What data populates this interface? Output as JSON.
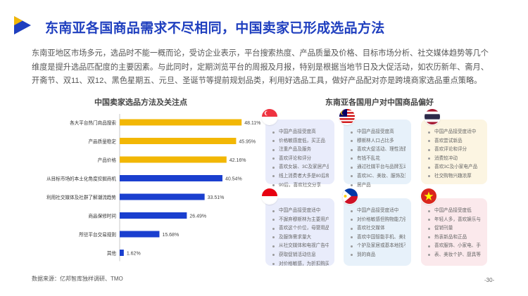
{
  "header": {
    "title": "东南亚各国商品需求不尽相同，中国卖家已形成选品方法"
  },
  "intro": {
    "text": "东南亚地区市场多元，选品时不能一概而论，受访企业表示，平台搜索热度、产品质量及价格、目标市场分析、社交媒体趋势等几个维度是提升选品匹配度的主要因素。与此同时，定期浏览平台的周报及月报，特别是根据当地节日及大促活动，如农历新年、斋月、开斋节、双11、双12、黑色星期五、元旦、圣诞节等提前规划品类，利用好选品工具，做好产品配对亦是跨境商家选品重点策略。"
  },
  "left_section": {
    "title": "中国卖家选品方法及关注点"
  },
  "right_section": {
    "title": "东南亚各国用户对中国商品偏好"
  },
  "colors": {
    "accent": "#1f3fbf",
    "gold": "#f2b705",
    "blue": "#1a3fcf"
  },
  "chart_data": {
    "type": "bar",
    "orientation": "horizontal",
    "categories": [
      "各大平台热门商品搜索",
      "产品质量稳定",
      "产品价格",
      "从目标市场的本土化角度挖掘商机",
      "利用社交媒体及社群了解潮流趋势",
      "商品保修时间",
      "所驻平台交易规则",
      "其他"
    ],
    "values": [
      48.11,
      45.95,
      42.16,
      40.54,
      33.51,
      26.49,
      15.68,
      1.62
    ],
    "value_labels": [
      "48.11%",
      "45.95%",
      "42.16%",
      "40.54%",
      "33.51%",
      "26.49%",
      "15.68%",
      "1.62%"
    ],
    "bar_colors": [
      "#f2b705",
      "#f2b705",
      "#f2b705",
      "#1a3fcf",
      "#1a3fcf",
      "#1a3fcf",
      "#1a3fcf",
      "#1a3fcf"
    ],
    "xlim": [
      0,
      50
    ],
    "grid": false
  },
  "countries": [
    {
      "flag": "singapore",
      "bg": "#e9ecfb",
      "items": [
        "中国产品接受度高",
        "价格敏感度低，买正品",
        "注重产品及服务",
        "喜欢评论和评分",
        "喜欢女装、3C及家居产品",
        "线上消费者大多是80后和",
        "90后，喜欢社交分享"
      ]
    },
    {
      "flag": "malaysia",
      "bg": "#e7f1fa",
      "items": [
        "中国产品接受度高",
        "穆斯林人口占比多",
        "喜欢大促活动、理性消费、",
        "有钱不乱花",
        "通过社媒平台与品牌互动",
        "喜欢3C、美妆、服饰及家",
        "居产品"
      ]
    },
    {
      "flag": "thailand",
      "bg": "#fcf5e2",
      "items": [
        "中国产品接受度适中",
        "喜欢尝试新品",
        "喜欢评论和评分",
        "消费较冲动",
        "喜欢3C及小家电产品",
        "社交购物兴趣浓厚"
      ]
    },
    {
      "flag": "indonesia",
      "bg": "#e9ecfb",
      "items": [
        "中国产品接受度适中",
        "不摒弃穆斯林为主要用户",
        "喜欢这个价位，母婴用品",
        "及服饰需求量大",
        "从社交媒体和电视广告中",
        "获取促销活动信息",
        "对价格敏感，为折扣购买"
      ]
    },
    {
      "flag": "philippines",
      "bg": "#e7f1fa",
      "items": [
        "中国产品接受度适中",
        "对价格敏感但购物能力强",
        "喜欢社交媒体",
        "喜欢中国智能手机、美妆",
        "个护及家居或基本地找不",
        "到的商品"
      ]
    },
    {
      "flag": "vietnam",
      "bg": "#fbe9ec",
      "items": [
        "中国产品接受度低",
        "年轻人多，喜欢娱乐与",
        "促销刊量",
        "热衷新品和正品",
        "喜欢服饰、小家电、手",
        "表、美妆个护、厨具等"
      ]
    }
  ],
  "footer": {
    "source": "数据来源：亿邦智库独样调研、TMO",
    "page": "-30-"
  }
}
